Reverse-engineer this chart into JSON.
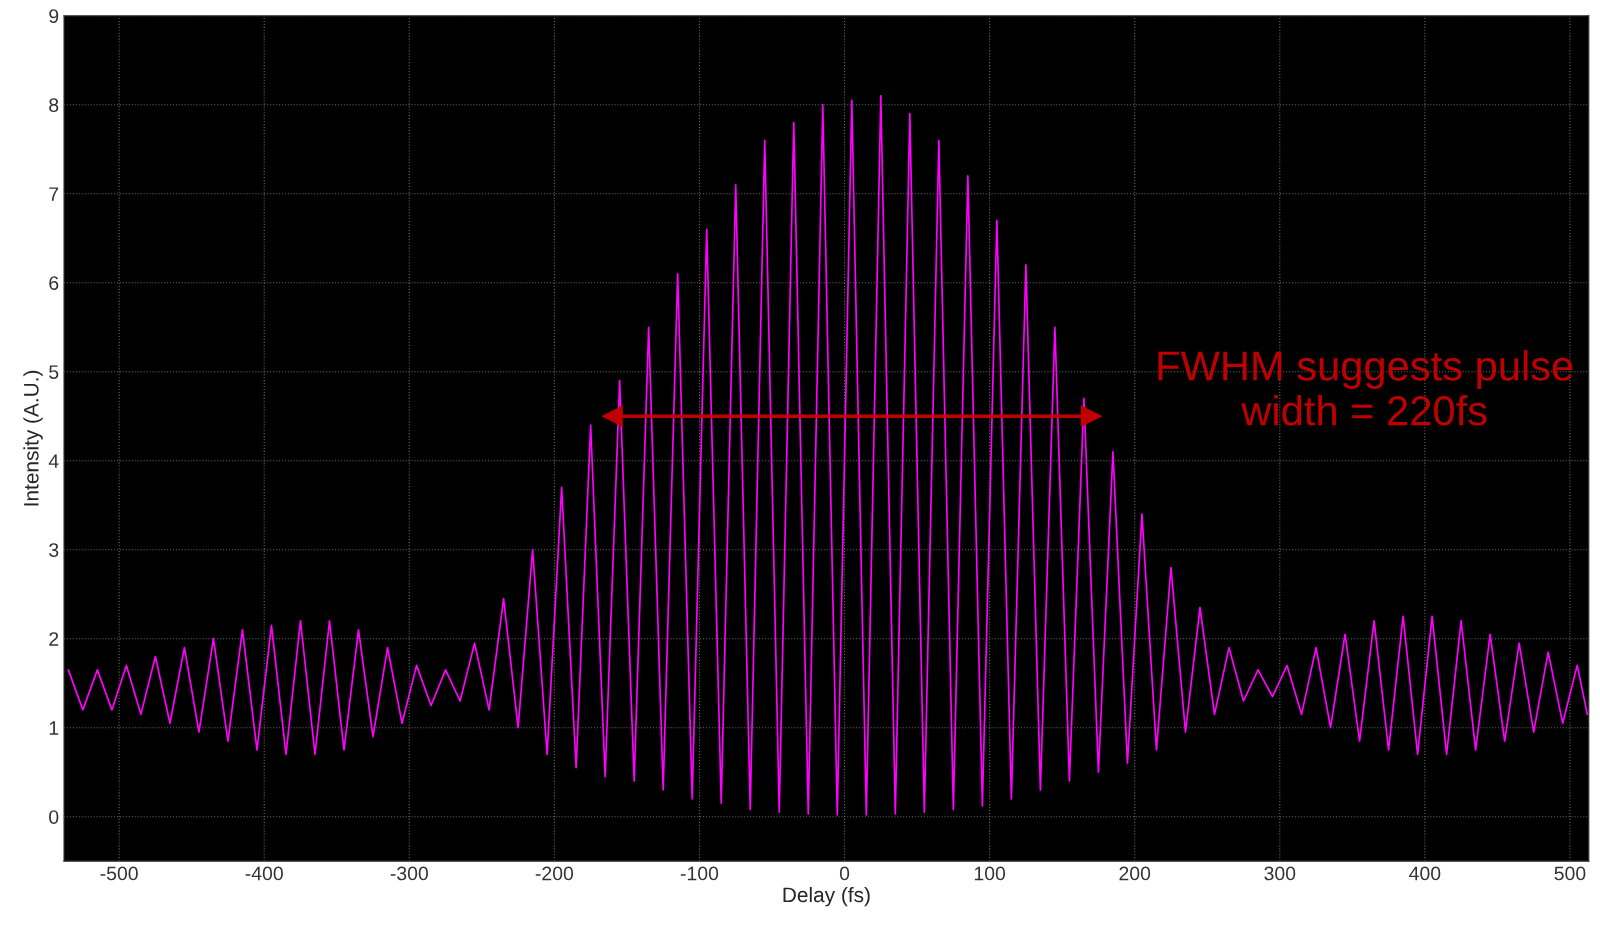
{
  "chart_data": {
    "type": "line",
    "xlabel": "Delay (fs)",
    "ylabel": "Intensity (A.U.)",
    "xlim": [
      -538,
      513
    ],
    "xticks": [
      -500,
      -400,
      -300,
      -200,
      -100,
      0,
      100,
      200,
      300,
      400,
      500
    ],
    "ylim": [
      -0.5,
      9
    ],
    "yticks": [
      0,
      1,
      2,
      3,
      4,
      5,
      6,
      7,
      8,
      9
    ],
    "grid": true,
    "annotations": [
      "FWHM suggests pulse width = 220fs"
    ],
    "series": [
      {
        "color": "#ff00ff",
        "x": [
          -535,
          -525,
          -515,
          -505,
          -495,
          -485,
          -475,
          -465,
          -455,
          -445,
          -435,
          -425,
          -415,
          -405,
          -395,
          -385,
          -375,
          -365,
          -355,
          -345,
          -335,
          -325,
          -315,
          -305,
          -295,
          -285,
          -275,
          -265,
          -255,
          -245,
          -235,
          -225,
          -215,
          -205,
          -195,
          -185,
          -175,
          -165,
          -155,
          -145,
          -135,
          -125,
          -115,
          -105,
          -95,
          -85,
          -75,
          -65,
          -55,
          -45,
          -35,
          -25,
          -15,
          -5,
          5,
          15,
          25,
          35,
          45,
          55,
          65,
          75,
          85,
          95,
          105,
          115,
          125,
          135,
          145,
          155,
          165,
          175,
          185,
          195,
          205,
          215,
          225,
          235,
          245,
          255,
          265,
          275,
          285,
          295,
          305,
          315,
          325,
          335,
          345,
          355,
          365,
          375,
          385,
          395,
          405,
          415,
          425,
          435,
          445,
          455,
          465,
          475,
          485,
          495,
          505,
          512
        ],
        "values": [
          1.65,
          1.2,
          1.65,
          1.2,
          1.7,
          1.15,
          1.8,
          1.05,
          1.9,
          0.95,
          2.0,
          0.85,
          2.1,
          0.75,
          2.15,
          0.7,
          2.2,
          0.7,
          2.2,
          0.75,
          2.1,
          0.9,
          1.9,
          1.05,
          1.7,
          1.25,
          1.65,
          1.3,
          1.95,
          1.2,
          2.45,
          1.0,
          3.0,
          0.7,
          3.7,
          0.55,
          4.4,
          0.45,
          4.9,
          0.4,
          5.5,
          0.3,
          6.1,
          0.2,
          6.6,
          0.15,
          7.1,
          0.08,
          7.6,
          0.05,
          7.8,
          0.03,
          8.0,
          0.02,
          8.05,
          0.02,
          8.1,
          0.03,
          7.9,
          0.05,
          7.6,
          0.08,
          7.2,
          0.12,
          6.7,
          0.2,
          6.2,
          0.3,
          5.5,
          0.4,
          4.7,
          0.5,
          4.1,
          0.6,
          3.4,
          0.75,
          2.8,
          0.95,
          2.35,
          1.15,
          1.9,
          1.3,
          1.65,
          1.35,
          1.7,
          1.15,
          1.9,
          1.0,
          2.05,
          0.85,
          2.2,
          0.75,
          2.25,
          0.7,
          2.25,
          0.7,
          2.2,
          0.75,
          2.05,
          0.85,
          1.95,
          0.95,
          1.85,
          1.05,
          1.7,
          1.15
        ]
      },
      {
        "marker": "triangle",
        "color": "#c00000",
        "x": [
          -160,
          170
        ],
        "values": [
          4.5,
          4.5
        ]
      }
    ]
  }
}
